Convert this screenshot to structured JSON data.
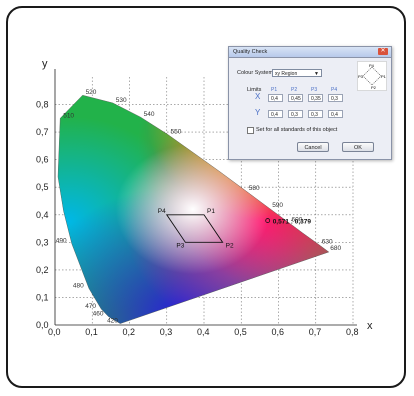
{
  "dialog": {
    "title": "Quality Check",
    "color_system_label": "Colour System",
    "color_system_value": "xy Region",
    "limits_label": "Limits",
    "point_headers": [
      "P1",
      "P2",
      "P3",
      "P4"
    ],
    "row_x_label": "X",
    "row_y_label": "Y",
    "x_values": [
      "0,4",
      "0,45",
      "0,35",
      "0,3"
    ],
    "y_values": [
      "0,4",
      "0,3",
      "0,3",
      "0,4"
    ],
    "checkbox_label": "Set for all standards of this object",
    "cancel_label": "Cancel",
    "ok_label": "OK",
    "diagram_labels": [
      "P4",
      "P1",
      "P2",
      "P3"
    ]
  },
  "chart_data": {
    "type": "scatter",
    "xlabel": "x",
    "ylabel": "y",
    "xlim": [
      0,
      0.8
    ],
    "ylim": [
      0,
      0.9
    ],
    "x_ticks": [
      "0,0",
      "0,1",
      "0,2",
      "0,3",
      "0,4",
      "0,5",
      "0,6",
      "0,7",
      "0,8"
    ],
    "y_ticks": [
      "0,0",
      "0,1",
      "0,2",
      "0,3",
      "0,4",
      "0,5",
      "0,6",
      "0,7",
      "0,8"
    ],
    "wavelength_labels": [
      {
        "text": "420",
        "x": 0.172,
        "y": 0.005
      },
      {
        "text": "460",
        "x": 0.144,
        "y": 0.03
      },
      {
        "text": "470",
        "x": 0.124,
        "y": 0.058
      },
      {
        "text": "480",
        "x": 0.091,
        "y": 0.133
      },
      {
        "text": "490",
        "x": 0.045,
        "y": 0.295
      },
      {
        "text": "510",
        "x": 0.014,
        "y": 0.75
      },
      {
        "text": "520",
        "x": 0.074,
        "y": 0.834
      },
      {
        "text": "530",
        "x": 0.155,
        "y": 0.806
      },
      {
        "text": "540",
        "x": 0.23,
        "y": 0.754
      },
      {
        "text": "550",
        "x": 0.302,
        "y": 0.692
      },
      {
        "text": "580",
        "x": 0.512,
        "y": 0.487
      },
      {
        "text": "590",
        "x": 0.575,
        "y": 0.424
      },
      {
        "text": "600",
        "x": 0.627,
        "y": 0.372
      },
      {
        "text": "630",
        "x": 0.708,
        "y": 0.292
      },
      {
        "text": "680",
        "x": 0.731,
        "y": 0.269
      }
    ],
    "region_points": [
      {
        "name": "P1",
        "x": 0.4,
        "y": 0.4
      },
      {
        "name": "P2",
        "x": 0.45,
        "y": 0.3
      },
      {
        "name": "P3",
        "x": 0.35,
        "y": 0.3
      },
      {
        "name": "P4",
        "x": 0.3,
        "y": 0.4
      }
    ],
    "sample_point": {
      "x": 0.571,
      "y": 0.379,
      "label": "0,571 : 0,379"
    },
    "grid": true
  }
}
